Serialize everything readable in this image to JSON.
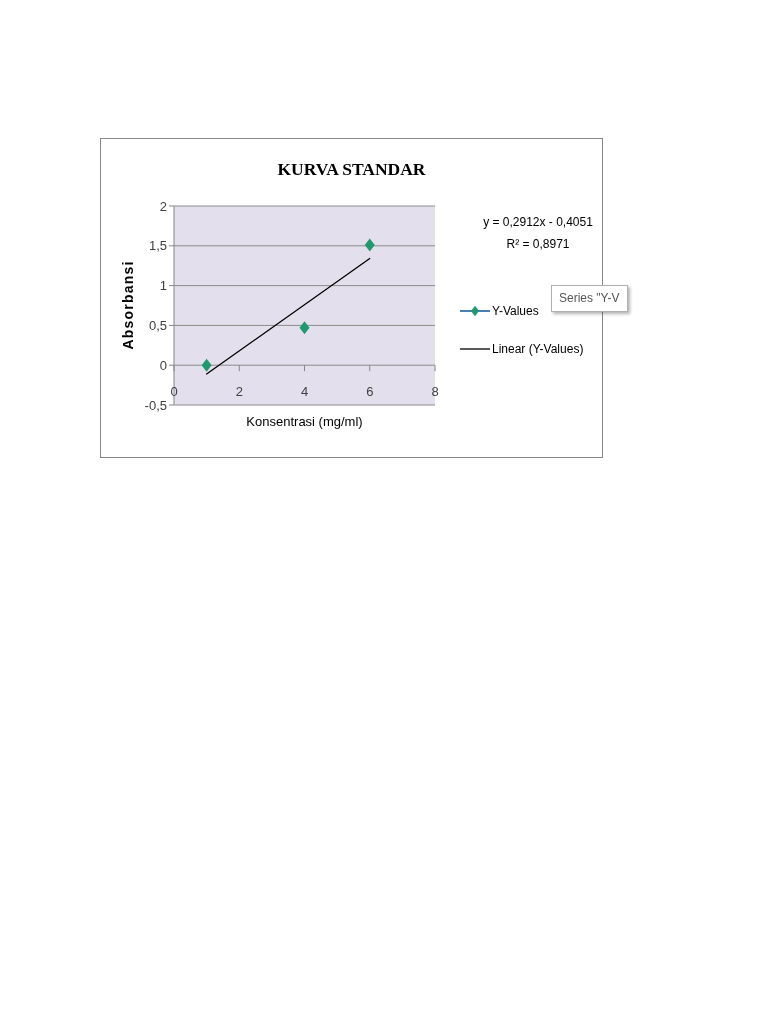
{
  "chart_data": {
    "type": "scatter",
    "title": "KURVA STANDAR",
    "xlabel": "Konsentrasi (mg/ml)",
    "ylabel": "Absorbansi",
    "series": [
      {
        "name": "Y-Values",
        "color": "#1e9a6e",
        "x": [
          1,
          4,
          6
        ],
        "values": [
          0,
          0.47,
          1.51
        ],
        "marker": "diamond"
      },
      {
        "name": "Linear (Y-Values)",
        "type": "line",
        "color": "#000000",
        "x": [
          1,
          6
        ],
        "values": [
          -0.11,
          1.34
        ],
        "marker": "none",
        "line_style": "solid"
      }
    ],
    "xlim": [
      0,
      8
    ],
    "xticks": [
      0,
      2,
      4,
      6,
      8
    ],
    "ylim": [
      -0.5,
      2
    ],
    "yticks": [
      {
        "value": -0.5,
        "label": "-0,5"
      },
      0,
      {
        "value": 0.5,
        "label": "0,5"
      },
      1,
      {
        "value": 1.5,
        "label": "1,5"
      },
      2
    ],
    "grid": "y",
    "legend": "right",
    "annotations": [
      "y = 0,2912x - 0,4051",
      "R² = 0,8971",
      "Series \"Y-V"
    ]
  }
}
